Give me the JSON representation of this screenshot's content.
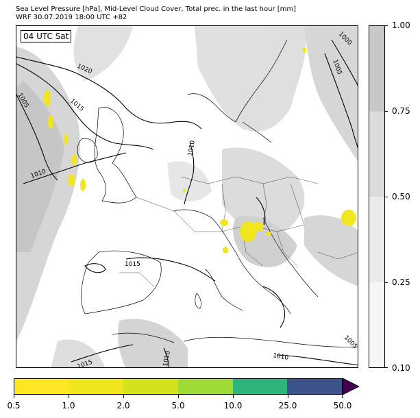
{
  "title_line1": "Sea Level Pressure [hPa], Mid-Level Cloud Cover, Total prec. in the last hour [mm]",
  "title_line2": "WRF 30.07.2019 18:00 UTC +82",
  "time_label": "04 UTC Sat",
  "isobar_labels": [
    "1020",
    "1015",
    "1005",
    "1010",
    "1015",
    "1010",
    "1010",
    "1015",
    "1010",
    "1005",
    "1000",
    "1005"
  ],
  "cloud_colorbar": {
    "ticks": [
      "1.00",
      "0.75",
      "0.50",
      "0.25",
      "0.10"
    ],
    "colors": [
      "#c8c8c8",
      "#dcdcdc",
      "#ebebeb",
      "#f6f6f6"
    ]
  },
  "precip_colorbar": {
    "ticks": [
      "0.5",
      "1.0",
      "2.0",
      "5.0",
      "10.0",
      "25.0",
      "50.0"
    ],
    "colors": [
      "#fde725",
      "#f1e51d",
      "#d2e21b",
      "#a0da39",
      "#2fb47c",
      "#3b528b",
      "#440154"
    ]
  }
}
